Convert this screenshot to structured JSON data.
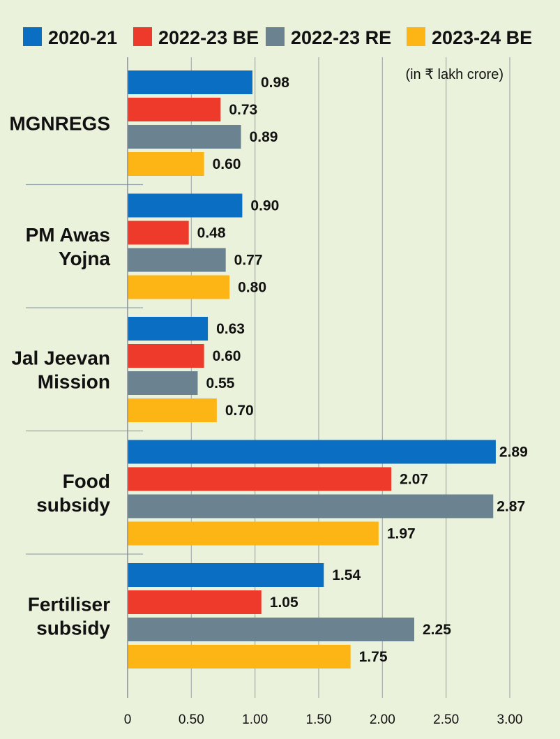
{
  "chart_data": {
    "type": "bar",
    "orientation": "horizontal",
    "unit_note": "(in ₹ lakh crore)",
    "categories": [
      [
        "MGNREGS"
      ],
      [
        "PM Awas",
        "Yojna"
      ],
      [
        "Jal Jeevan",
        "Mission"
      ],
      [
        "Food",
        "subsidy"
      ],
      [
        "Fertiliser",
        "subsidy"
      ]
    ],
    "series": [
      {
        "name": "2020-21",
        "color": "#0a6fc2",
        "values": [
          0.98,
          0.9,
          0.63,
          2.89,
          1.54
        ],
        "labels": [
          "0.98",
          "0.90",
          "0.63",
          "2.89",
          "1.54"
        ]
      },
      {
        "name": "2022-23 BE",
        "color": "#ee3a2a",
        "values": [
          0.73,
          0.48,
          0.6,
          2.07,
          1.05
        ],
        "labels": [
          "0.73",
          "0.48",
          "0.60",
          "2.07",
          "1.05"
        ]
      },
      {
        "name": "2022-23 RE",
        "color": "#6b8290",
        "values": [
          0.89,
          0.77,
          0.55,
          2.87,
          2.25
        ],
        "labels": [
          "0.89",
          "0.77",
          "0.55",
          "2.87",
          "2.25"
        ]
      },
      {
        "name": "2023-24 BE",
        "color": "#fdb515",
        "values": [
          0.6,
          0.8,
          0.7,
          1.97,
          1.75
        ],
        "labels": [
          "0.60",
          "0.80",
          "0.70",
          "1.97",
          "1.75"
        ]
      }
    ],
    "x_ticks": [
      0,
      0.5,
      1.0,
      1.5,
      2.0,
      2.5,
      3.0
    ],
    "x_tick_labels": [
      "0",
      "0.50",
      "1.00",
      "1.50",
      "2.00",
      "2.50",
      "3.00"
    ],
    "xlim": [
      0,
      3.0
    ],
    "grid": true,
    "legend_position": "top"
  }
}
